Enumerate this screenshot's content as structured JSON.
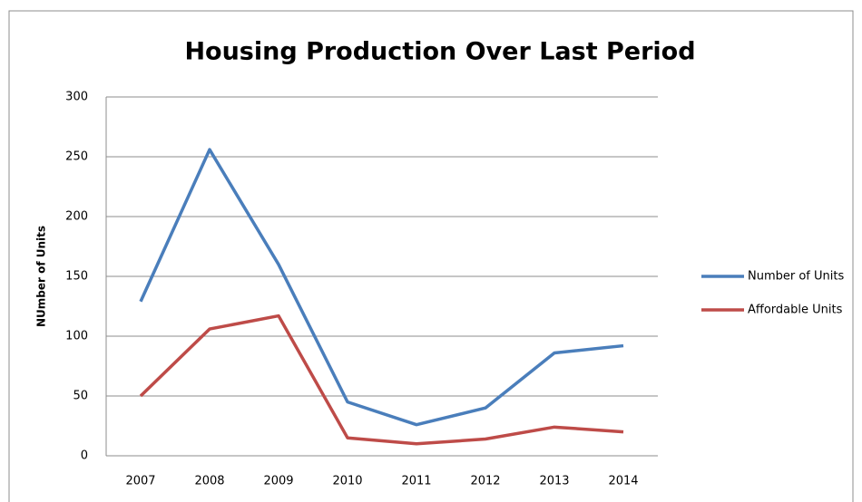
{
  "chart_data": {
    "type": "line",
    "title": "Housing Production Over Last Period",
    "y_label": "NUmber of Units",
    "categories": [
      "2007",
      "2008",
      "2009",
      "2010",
      "2011",
      "2012",
      "2013",
      "2014"
    ],
    "series": [
      {
        "name": "Number of Units",
        "color": "#4a7ebb",
        "values": [
          129,
          256,
          160,
          45,
          26,
          40,
          86,
          92
        ]
      },
      {
        "name": "Affordable Units",
        "color": "#be4b48",
        "values": [
          50,
          106,
          117,
          15,
          10,
          14,
          24,
          20
        ]
      }
    ],
    "ylim": [
      0,
      300
    ],
    "yticks": [
      0,
      50,
      100,
      150,
      200,
      250,
      300
    ],
    "grid": true,
    "legend": "right"
  }
}
